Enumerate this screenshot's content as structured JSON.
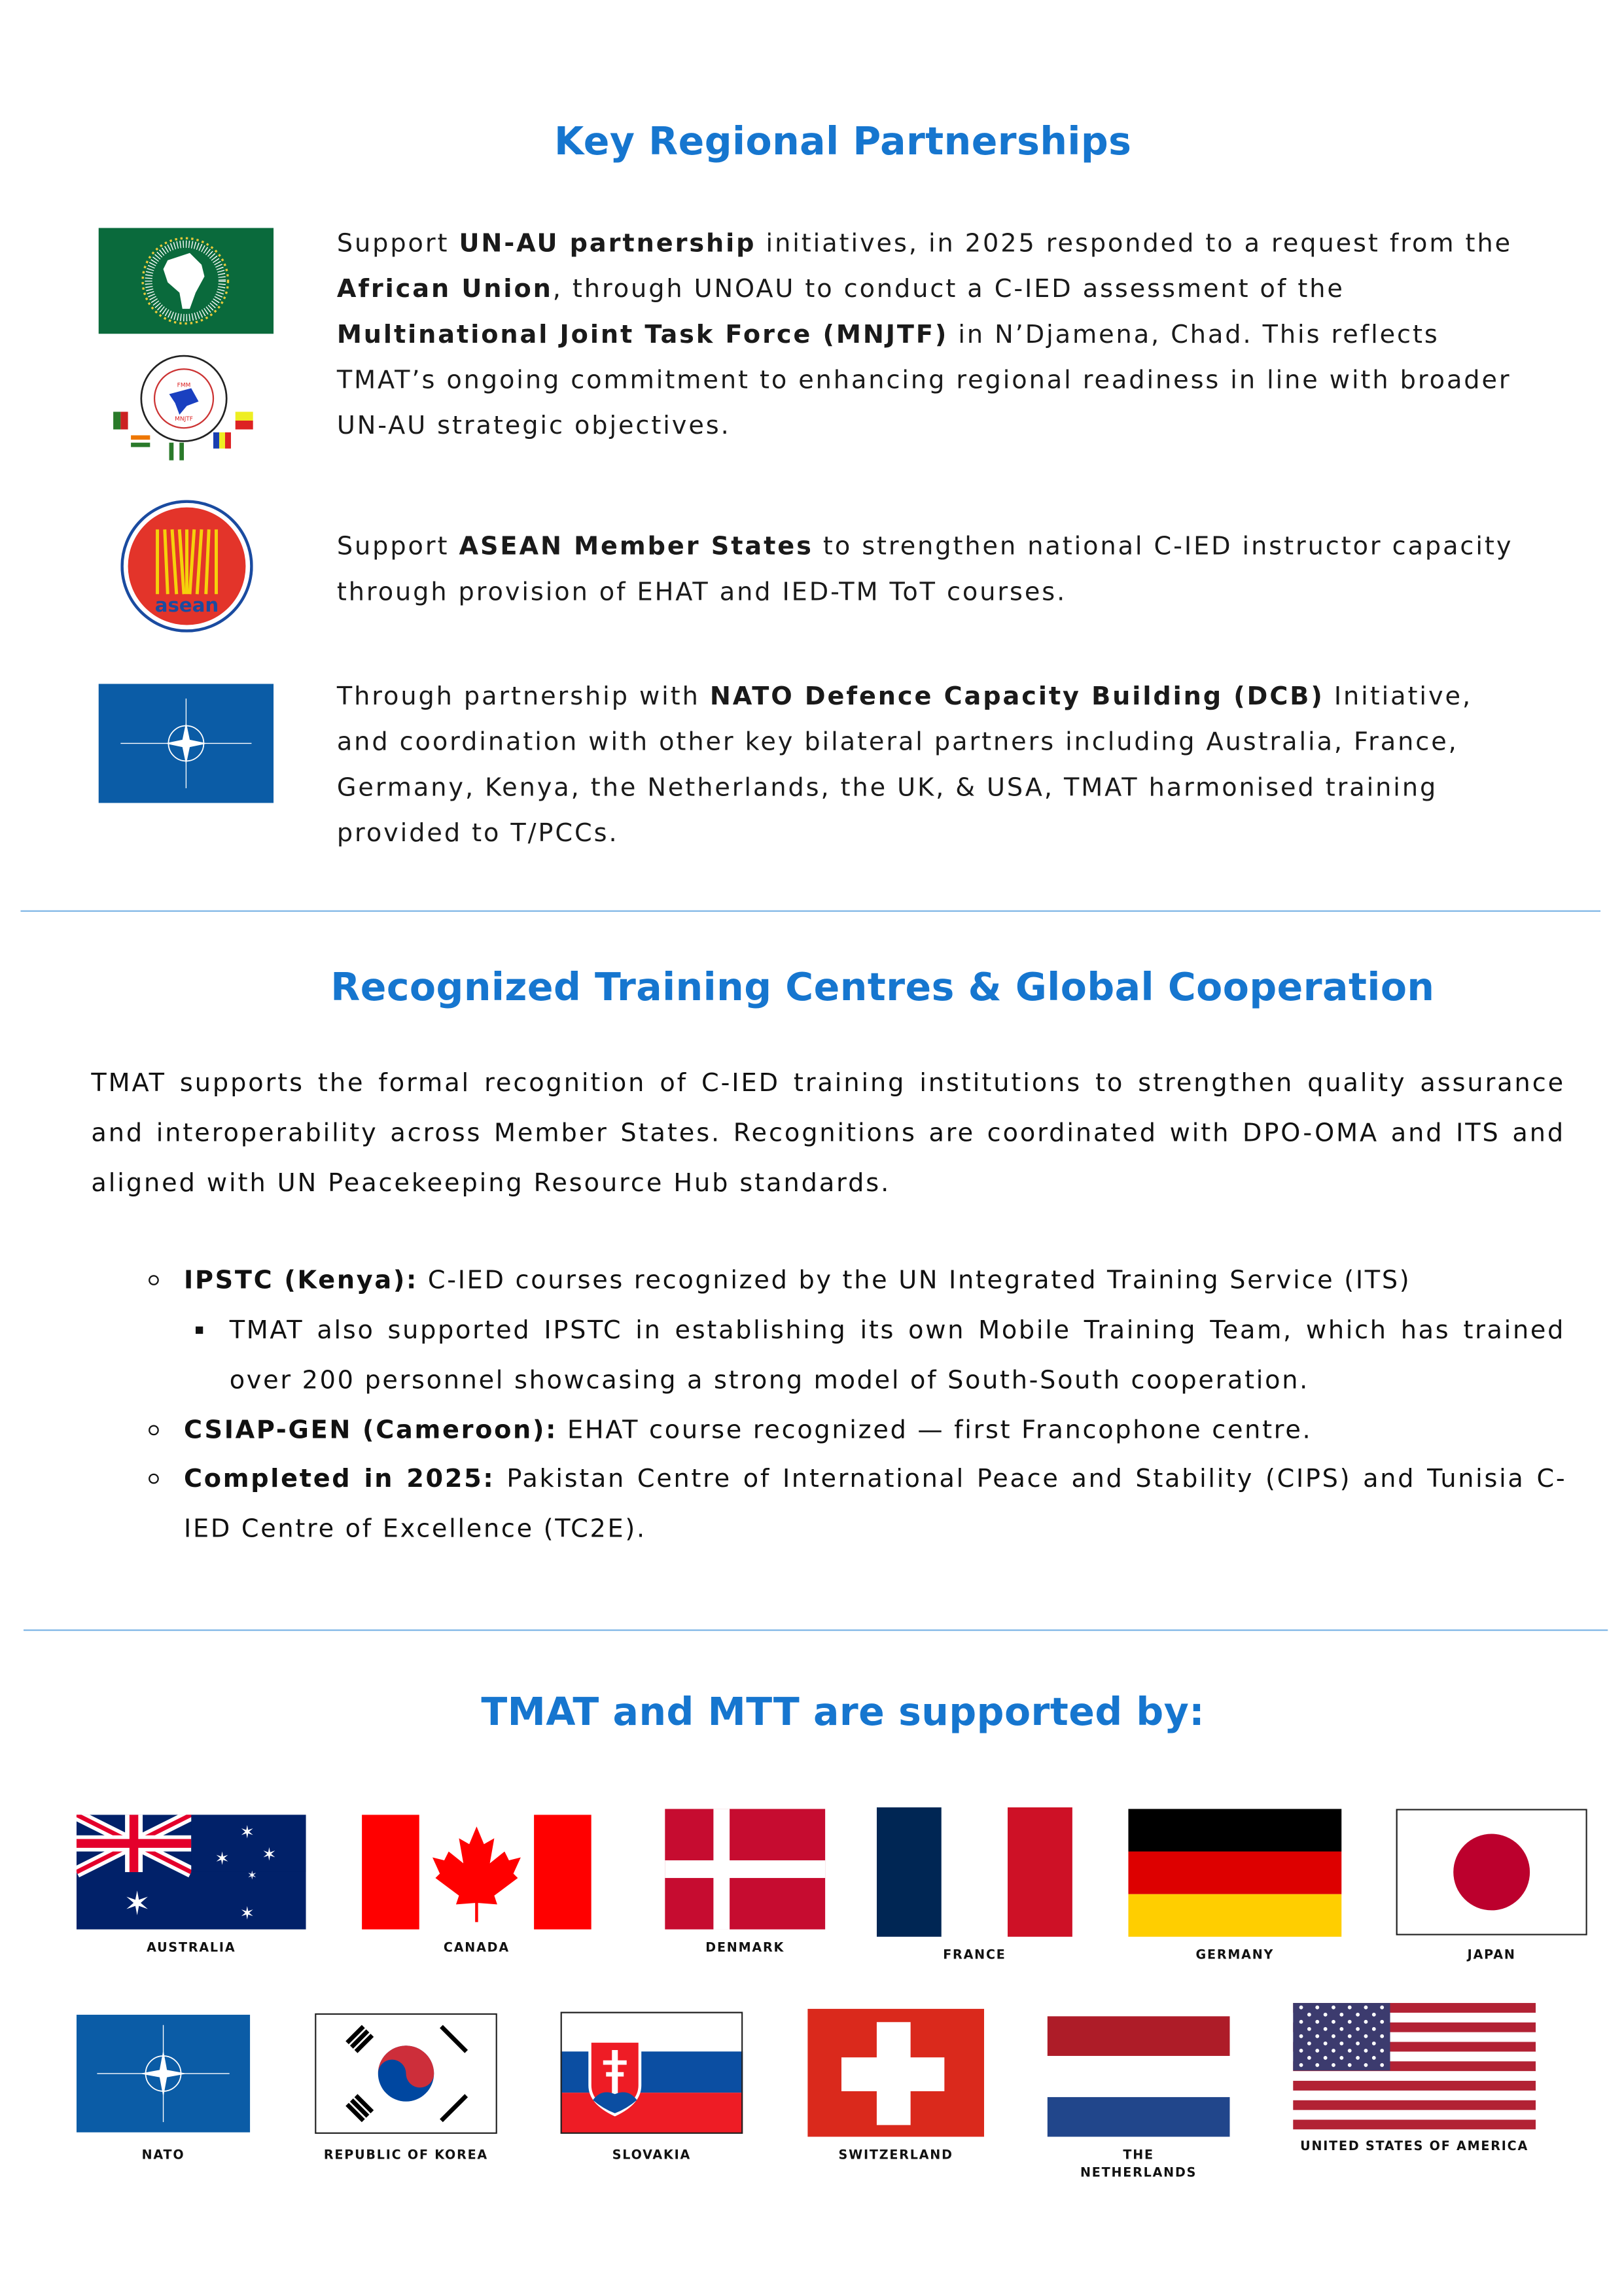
{
  "section1": {
    "title": "Key Regional Partnerships",
    "p1": {
      "a": "Support ",
      "b": "UN-AU partnership",
      "c": " initiatives, in 2025 responded to a request from the ",
      "d": "African Union",
      "e": ", through UNOAU to conduct a C-IED assessment of the ",
      "f": "Multinational Joint Task Force (MNJTF)",
      "g": " in N’Djamena, Chad. This reflects TMAT’s ongoing commitment to enhancing regional readiness in line with broader UN-AU strategic objectives."
    },
    "p2": {
      "a": "Support ",
      "b": "ASEAN Member States",
      "c": " to strengthen national C-IED instructor capacity through provision of EHAT and IED-TM ToT courses."
    },
    "p3": {
      "a": "Through partnership with ",
      "b": "NATO Defence Capacity Building (DCB)",
      "c": " Initiative, and coordination with other key bilateral partners including Australia, France, Germany, Kenya, the Netherlands, the UK, & USA, TMAT harmonised training provided to T/PCCs."
    },
    "logos": {
      "mnjtf_text": [
        "COMMISSION DU BASSIN DU LAC TCHAD",
        "LAKE CHAD BASIN COMMISSION",
        "FMM",
        "MNJTF"
      ],
      "asean_text": "asean"
    }
  },
  "section2": {
    "title": "Recognized Training Centres & Global Cooperation",
    "intro": "TMAT supports the formal recognition of C-IED training institutions to strengthen quality assurance and interoperability across Member States.  Recognitions are coordinated with DPO-OMA and ITS and aligned with UN Peacekeeping Resource Hub standards.",
    "bullets": [
      {
        "bold": "IPSTC (Kenya):",
        "text": "  C-IED courses recognized by the UN Integrated Training Service (ITS)"
      },
      {
        "sub": "TMAT also supported IPSTC in establishing its own Mobile Training Team, which has trained over 200 personnel showcasing a strong model of South-South cooperation."
      },
      {
        "bold": "CSIAP-GEN (Cameroon):",
        "text": "  EHAT course recognized — first Francophone centre."
      },
      {
        "bold": "Completed in 2025:",
        "text": " Pakistan Centre of International Peace and Stability (CIPS) and Tunisia C-IED Centre of Excellence (TC2E)."
      }
    ]
  },
  "section3": {
    "title": "TMAT and MTT are supported by:",
    "flags": [
      "AUSTRALIA",
      "CANADA",
      "DENMARK",
      "FRANCE",
      "GERMANY",
      "JAPAN",
      "NATO",
      "REPUBLIC OF KOREA",
      "SLOVAKIA",
      "SWITZERLAND",
      "THE NETHERLANDS",
      "UNITED STATES OF AMERICA"
    ],
    "netherlands_lines": [
      "THE",
      "NETHERLANDS"
    ]
  },
  "colors": {
    "heading": "#1676cf",
    "divider": "#7fb6e6"
  }
}
